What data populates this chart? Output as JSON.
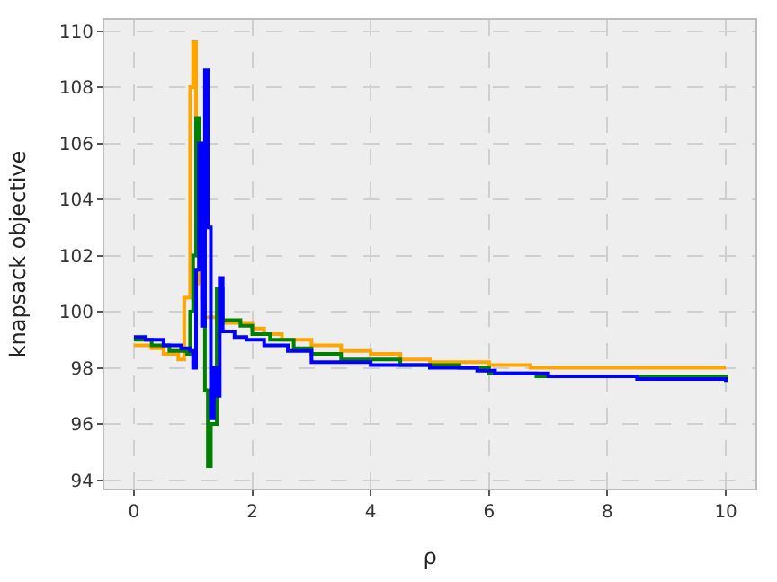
{
  "chart_data": {
    "type": "step",
    "xlabel": "ρ",
    "ylabel": "knapsack objective",
    "xlim": [
      -0.5,
      10.5
    ],
    "ylim": [
      93.7,
      110.4
    ],
    "xticks": [
      0,
      2,
      4,
      6,
      8,
      10
    ],
    "yticks": [
      94,
      96,
      98,
      100,
      102,
      104,
      106,
      108,
      110
    ],
    "grid": true,
    "line_style": "solid",
    "marker": "none",
    "series": [
      {
        "color": "#ffa500",
        "x": [
          0,
          0.3,
          0.5,
          0.75,
          0.85,
          0.95,
          1.0,
          1.05,
          1.1,
          1.15,
          1.2,
          1.5,
          2.0,
          2.2,
          2.5,
          3.0,
          3.5,
          4.0,
          4.5,
          5.0,
          6.0,
          6.7,
          10
        ],
        "values": [
          98.8,
          98.7,
          98.5,
          98.3,
          100.5,
          108,
          109.6,
          106,
          101,
          100.5,
          99.8,
          99.6,
          99.4,
          99.2,
          99.0,
          98.8,
          98.6,
          98.5,
          98.3,
          98.2,
          98.1,
          98.0,
          98.0
        ]
      },
      {
        "color": "#008000",
        "x": [
          0,
          0.3,
          0.6,
          0.9,
          0.95,
          1.0,
          1.05,
          1.1,
          1.2,
          1.25,
          1.3,
          1.4,
          1.5,
          1.8,
          2.0,
          2.3,
          2.7,
          3.0,
          3.5,
          4.5,
          5.5,
          6.0,
          6.8,
          10
        ],
        "values": [
          99.0,
          98.8,
          98.6,
          98.5,
          100,
          102,
          106.9,
          103,
          97.2,
          94.5,
          96,
          100.8,
          99.7,
          99.5,
          99.2,
          99.0,
          98.7,
          98.5,
          98.3,
          98.1,
          98.0,
          97.8,
          97.7,
          97.6
        ]
      },
      {
        "color": "#0000ff",
        "x": [
          0,
          0.2,
          0.5,
          0.8,
          0.95,
          1.0,
          1.05,
          1.1,
          1.15,
          1.2,
          1.25,
          1.3,
          1.35,
          1.4,
          1.45,
          1.5,
          1.7,
          1.9,
          2.2,
          2.6,
          3.0,
          4.0,
          5.0,
          5.8,
          6.1,
          7.0,
          8.5,
          10
        ],
        "values": [
          99.1,
          99.0,
          98.8,
          98.7,
          98.6,
          98.0,
          101.5,
          106,
          99.5,
          108.6,
          103,
          96.2,
          98,
          97,
          101.2,
          99.3,
          99.1,
          99.0,
          98.8,
          98.6,
          98.2,
          98.1,
          98.0,
          97.9,
          97.8,
          97.7,
          97.6,
          97.5
        ]
      }
    ]
  }
}
